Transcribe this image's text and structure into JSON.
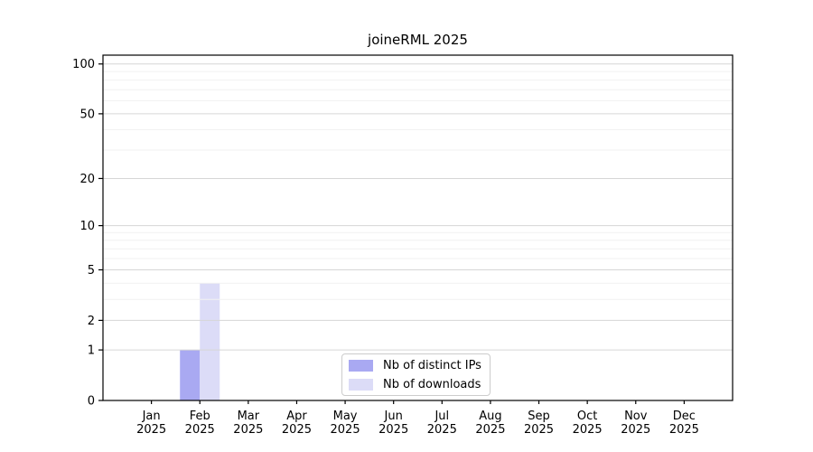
{
  "chart_data": {
    "type": "bar",
    "title": "joineRML 2025",
    "categories": [
      "Jan",
      "Feb",
      "Mar",
      "Apr",
      "May",
      "Jun",
      "Jul",
      "Aug",
      "Sep",
      "Oct",
      "Nov",
      "Dec"
    ],
    "year_label": "2025",
    "series": [
      {
        "name": "Nb of distinct IPs",
        "color": "#a9a9f2",
        "values": [
          0,
          1,
          0,
          0,
          0,
          0,
          0,
          0,
          0,
          0,
          0,
          0
        ]
      },
      {
        "name": "Nb of downloads",
        "color": "#dcdcf7",
        "values": [
          0,
          4,
          0,
          0,
          0,
          0,
          0,
          0,
          0,
          0,
          0,
          0
        ]
      }
    ],
    "xlabel": "",
    "ylabel": "",
    "y_scale": "log1p",
    "ylim": [
      0,
      113
    ],
    "y_ticks": [
      0,
      1,
      2,
      5,
      10,
      20,
      50,
      100
    ],
    "y_minor_ticks": [
      3,
      4,
      6,
      7,
      8,
      9,
      30,
      40,
      60,
      70,
      80,
      90
    ],
    "grid": {
      "enabled": true,
      "major_color": "#d6d6d6",
      "minor_color": "#f1f1f1",
      "above_bars": true
    },
    "axis_color": "#000000",
    "legend_position": "lower-center-inside"
  }
}
